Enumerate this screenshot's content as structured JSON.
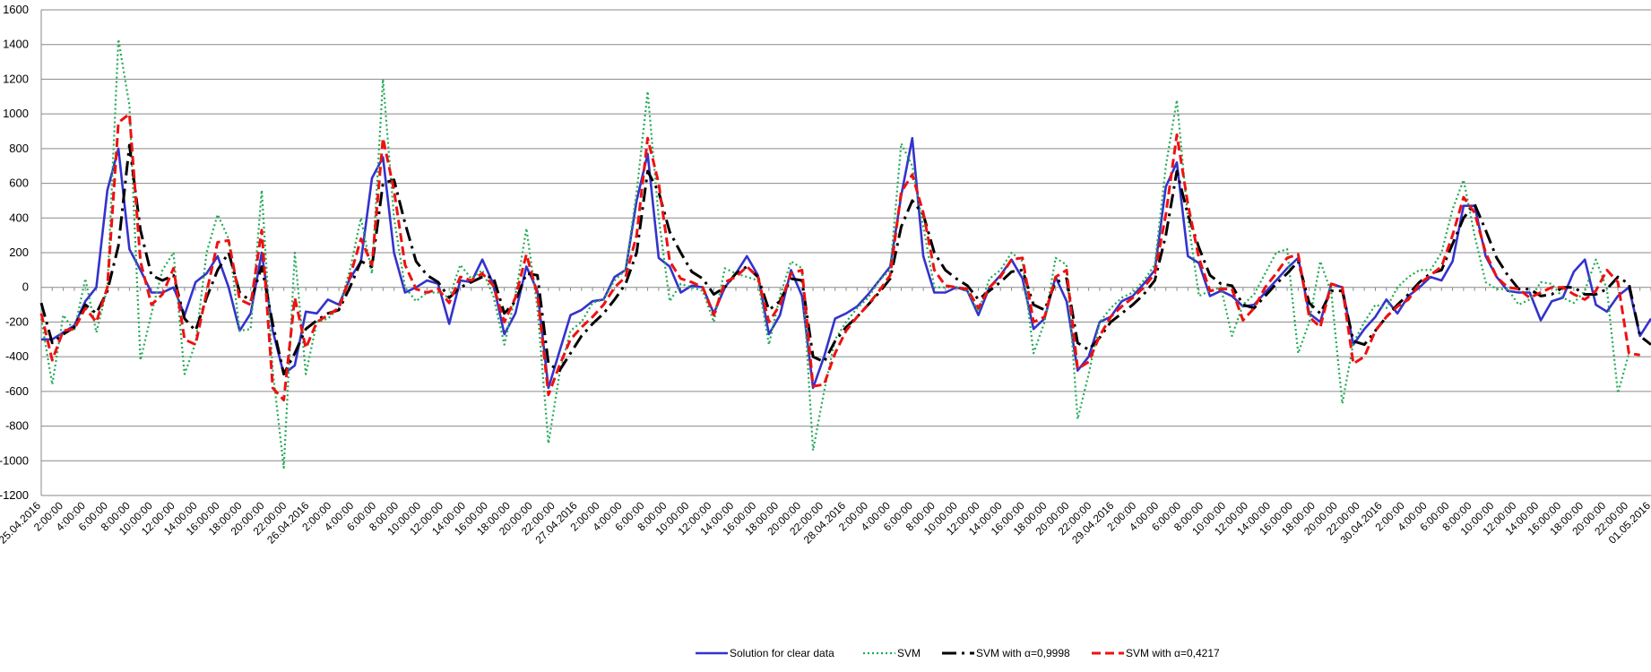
{
  "chart_data": {
    "type": "line",
    "title": "",
    "xlabel": "",
    "ylabel": "",
    "ylim": [
      -1200,
      1600
    ],
    "yticks": [
      -1200,
      -1000,
      -800,
      -600,
      -400,
      -200,
      0,
      200,
      400,
      600,
      800,
      1000,
      1200,
      1400,
      1600
    ],
    "grid": true,
    "legend_position": "bottom",
    "x_tick_labels": [
      "25.04.2016",
      "2:00:00",
      "4:00:00",
      "6:00:00",
      "8:00:00",
      "10:00:00",
      "12:00:00",
      "14:00:00",
      "16:00:00",
      "18:00:00",
      "20:00:00",
      "22:00:00",
      "26.04.2016",
      "2:00:00",
      "4:00:00",
      "6:00:00",
      "8:00:00",
      "10:00:00",
      "12:00:00",
      "14:00:00",
      "16:00:00",
      "18:00:00",
      "20:00:00",
      "22:00:00",
      "27.04.2016",
      "2:00:00",
      "4:00:00",
      "6:00:00",
      "8:00:00",
      "10:00:00",
      "12:00:00",
      "14:00:00",
      "16:00:00",
      "18:00:00",
      "20:00:00",
      "22:00:00",
      "28.04.2016",
      "2:00:00",
      "4:00:00",
      "6:00:00",
      "8:00:00",
      "10:00:00",
      "12:00:00",
      "14:00:00",
      "16:00:00",
      "18:00:00",
      "20:00:00",
      "22:00:00",
      "29.04.2016",
      "2:00:00",
      "4:00:00",
      "6:00:00",
      "8:00:00",
      "10:00:00",
      "12:00:00",
      "14:00:00",
      "16:00:00",
      "18:00:00",
      "20:00:00",
      "22:00:00",
      "30.04.2016",
      "2:00:00",
      "4:00:00",
      "6:00:00",
      "8:00:00",
      "10:00:00",
      "12:00:00",
      "14:00:00",
      "16:00:00",
      "18:00:00",
      "20:00:00",
      "22:00:00",
      "01.05.2016"
    ],
    "series": [
      {
        "name": "Solution for clear data",
        "color": "#3333cc",
        "style": "solid",
        "values": [
          -300,
          -300,
          -260,
          -220,
          -80,
          0,
          560,
          800,
          220,
          100,
          -30,
          -30,
          0,
          -160,
          30,
          80,
          180,
          0,
          -250,
          -150,
          200,
          -250,
          -500,
          -450,
          -140,
          -150,
          -70,
          -100,
          50,
          150,
          630,
          750,
          200,
          -30,
          0,
          40,
          20,
          -210,
          40,
          30,
          160,
          20,
          -270,
          -150,
          120,
          -20,
          -580,
          -370,
          -160,
          -130,
          -80,
          -70,
          60,
          100,
          500,
          770,
          170,
          120,
          -30,
          10,
          0,
          -150,
          0,
          80,
          180,
          70,
          -270,
          -160,
          100,
          -50,
          -580,
          -400,
          -180,
          -150,
          -110,
          -40,
          40,
          120,
          530,
          860,
          180,
          -30,
          -30,
          0,
          -20,
          -160,
          0,
          70,
          160,
          50,
          -240,
          -180,
          60,
          -80,
          -480,
          -400,
          -200,
          -170,
          -80,
          -50,
          20,
          100,
          580,
          720,
          180,
          140,
          -50,
          -20,
          -50,
          -110,
          -100,
          -30,
          40,
          110,
          170,
          -150,
          -200,
          20,
          0,
          -330,
          -240,
          -170,
          -70,
          -150,
          -50,
          0,
          60,
          40,
          150,
          470,
          470,
          180,
          60,
          -20,
          -30,
          -30,
          -190,
          -80,
          -60,
          90,
          160,
          -100,
          -140,
          -50,
          0,
          -280,
          -180
        ]
      },
      {
        "name": "SVM",
        "color": "#22aa55",
        "style": "dotted",
        "values": [
          -180,
          -560,
          -160,
          -250,
          50,
          -260,
          0,
          1430,
          1050,
          -420,
          -150,
          100,
          200,
          -500,
          -320,
          200,
          420,
          280,
          -250,
          -240,
          560,
          -480,
          -1040,
          200,
          -500,
          -200,
          -180,
          -120,
          100,
          400,
          80,
          1200,
          400,
          0,
          -80,
          -30,
          -30,
          -60,
          130,
          50,
          100,
          -50,
          -330,
          -50,
          340,
          -120,
          -900,
          -500,
          -250,
          -200,
          -90,
          -70,
          40,
          100,
          550,
          1130,
          400,
          -80,
          20,
          0,
          -20,
          -200,
          110,
          80,
          60,
          40,
          -330,
          -50,
          150,
          110,
          -940,
          -600,
          -300,
          -200,
          -120,
          -60,
          40,
          100,
          830,
          700,
          350,
          0,
          0,
          0,
          -20,
          -140,
          50,
          100,
          200,
          150,
          -380,
          -200,
          170,
          130,
          -760,
          -500,
          -200,
          -120,
          -60,
          -30,
          40,
          130,
          700,
          1080,
          400,
          -50,
          -20,
          0,
          -280,
          -100,
          -40,
          80,
          200,
          220,
          -380,
          -200,
          150,
          -30,
          -670,
          -320,
          -200,
          -100,
          -120,
          0,
          60,
          100,
          100,
          200,
          450,
          620,
          300,
          30,
          -10,
          -10,
          -100,
          -70,
          30,
          20,
          -60,
          -90,
          -20,
          160,
          -10,
          -610,
          -380
        ]
      },
      {
        "name": "SVM with α=0,9998",
        "color": "#000000",
        "style": "dashdot",
        "values": [
          -90,
          -320,
          -270,
          -230,
          -100,
          -150,
          -20,
          240,
          820,
          330,
          70,
          40,
          70,
          -180,
          -250,
          -60,
          100,
          200,
          -30,
          -80,
          120,
          -210,
          -500,
          -380,
          -240,
          -190,
          -150,
          -130,
          0,
          150,
          120,
          600,
          620,
          370,
          150,
          70,
          30,
          -60,
          0,
          30,
          60,
          60,
          -150,
          -80,
          80,
          70,
          -440,
          -480,
          -380,
          -280,
          -210,
          -150,
          -70,
          20,
          200,
          670,
          550,
          320,
          200,
          90,
          50,
          -40,
          0,
          80,
          120,
          60,
          -130,
          -80,
          50,
          40,
          -400,
          -430,
          -310,
          -230,
          -170,
          -100,
          -30,
          50,
          350,
          500,
          420,
          200,
          100,
          50,
          10,
          -70,
          -20,
          30,
          90,
          100,
          -100,
          -130,
          30,
          50,
          -320,
          -360,
          -290,
          -200,
          -150,
          -100,
          -40,
          40,
          300,
          670,
          420,
          230,
          70,
          20,
          10,
          -100,
          -120,
          -50,
          20,
          80,
          150,
          -90,
          -150,
          -20,
          -20,
          -310,
          -330,
          -250,
          -170,
          -100,
          -40,
          30,
          80,
          100,
          250,
          400,
          480,
          330,
          170,
          70,
          -10,
          -10,
          -50,
          -40,
          0,
          0,
          -40,
          -40,
          -10,
          60,
          20,
          -280,
          -330
        ]
      },
      {
        "name": "SVM with α=0,4217",
        "color": "#ee1111",
        "style": "dashed",
        "values": [
          -150,
          -420,
          -250,
          -240,
          -120,
          -200,
          0,
          950,
          1000,
          150,
          -100,
          -40,
          110,
          -300,
          -330,
          -30,
          260,
          270,
          -70,
          -100,
          330,
          -580,
          -650,
          -60,
          -350,
          -200,
          -160,
          -120,
          60,
          280,
          130,
          860,
          560,
          130,
          -10,
          -30,
          -10,
          -90,
          60,
          40,
          80,
          10,
          -200,
          -60,
          190,
          -40,
          -620,
          -450,
          -300,
          -230,
          -170,
          -100,
          0,
          60,
          300,
          860,
          600,
          150,
          50,
          30,
          0,
          -160,
          30,
          60,
          120,
          60,
          -200,
          -100,
          80,
          100,
          -570,
          -560,
          -380,
          -250,
          -170,
          -100,
          -20,
          70,
          550,
          650,
          430,
          100,
          10,
          0,
          -10,
          -120,
          0,
          60,
          160,
          170,
          -200,
          -170,
          60,
          100,
          -470,
          -430,
          -280,
          -170,
          -110,
          -60,
          0,
          80,
          420,
          880,
          480,
          170,
          -20,
          -10,
          -10,
          -190,
          -120,
          0,
          80,
          170,
          190,
          -170,
          -230,
          20,
          0,
          -440,
          -400,
          -250,
          -170,
          -110,
          -70,
          20,
          70,
          120,
          300,
          520,
          430,
          200,
          60,
          0,
          -10,
          -60,
          -30,
          0,
          0,
          -40,
          -70,
          -20,
          100,
          30,
          -380,
          -390
        ]
      }
    ]
  }
}
